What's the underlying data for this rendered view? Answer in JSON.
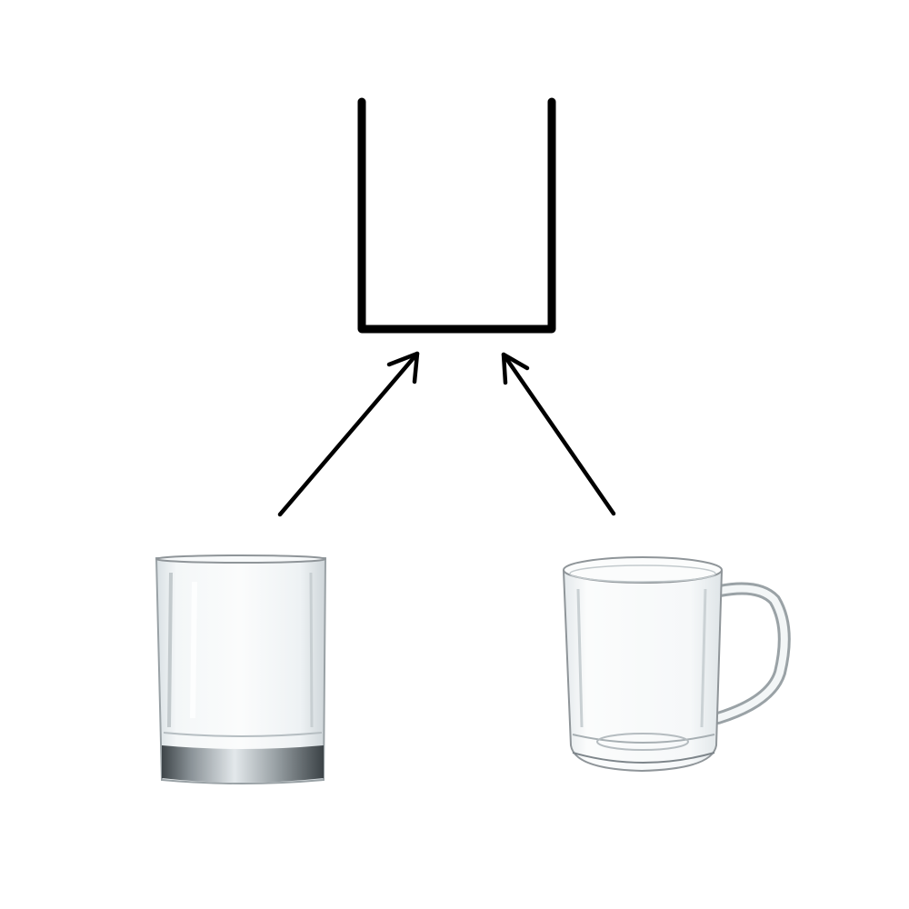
{
  "diagram": {
    "nodes": [
      {
        "id": "symbol",
        "kind": "u-shape-outline",
        "label": ""
      },
      {
        "id": "tumbler",
        "kind": "glass-tumbler-photo",
        "label": ""
      },
      {
        "id": "mug",
        "kind": "glass-mug-photo",
        "label": ""
      }
    ],
    "edges": [
      {
        "from": "tumbler",
        "to": "symbol",
        "directed": true
      },
      {
        "from": "mug",
        "to": "symbol",
        "directed": true
      }
    ]
  },
  "colors": {
    "background": "#ffffff",
    "stroke": "#000000",
    "glass_edge": "#8f9599",
    "glass_tint": "#e9eef1",
    "glass_base": "#5f666b"
  }
}
